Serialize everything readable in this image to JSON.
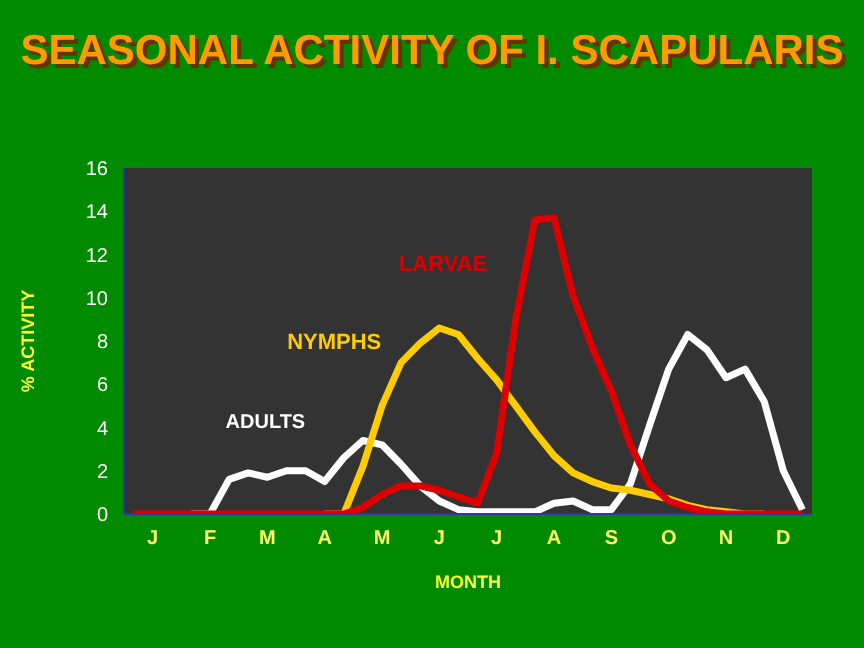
{
  "chart_data": {
    "type": "line",
    "title": "SEASONAL ACTIVITY OF I. SCAPULARIS",
    "xlabel": "MONTH",
    "ylabel": "% ACTIVITY",
    "categories": [
      null,
      "J",
      null,
      null,
      "F",
      null,
      null,
      "M",
      null,
      null,
      "A",
      null,
      null,
      "M",
      null,
      null,
      "J",
      null,
      null,
      "J",
      null,
      null,
      "A",
      null,
      null,
      "S",
      null,
      null,
      "O",
      null,
      null,
      "N",
      null,
      null,
      "D",
      null
    ],
    "ylim": [
      0,
      16
    ],
    "yticks": [
      0,
      2,
      4,
      6,
      8,
      10,
      12,
      14,
      16
    ],
    "grid": false,
    "legend": false,
    "marker": "none",
    "line_style": "solid",
    "series": [
      {
        "name": "ADULTS",
        "color": "#ffffff",
        "values": [
          null,
          null,
          null,
          0,
          0,
          1.6,
          1.9,
          1.7,
          2.0,
          2.0,
          1.5,
          2.6,
          3.4,
          3.2,
          2.3,
          1.3,
          0.6,
          0.2,
          0.1,
          0.1,
          0.1,
          0.1,
          0.5,
          0.6,
          0.2,
          0.2,
          1.4,
          4.1,
          6.7,
          8.3,
          7.6,
          6.3,
          6.7,
          5.2,
          2.0,
          0.2
        ]
      },
      {
        "name": "NYMPHS",
        "color": "#ffcc00",
        "values": [
          null,
          null,
          null,
          null,
          null,
          null,
          null,
          null,
          null,
          null,
          0,
          0,
          2.2,
          5.0,
          7.0,
          7.9,
          8.6,
          8.3,
          7.2,
          6.2,
          5.0,
          3.8,
          2.7,
          1.9,
          1.5,
          1.2,
          1.1,
          0.9,
          0.7,
          0.4,
          0.2,
          0.1,
          0,
          0,
          null,
          null
        ]
      },
      {
        "name": "LARVAE",
        "color": "#dd0000",
        "values": [
          0,
          0,
          0,
          0,
          0,
          0,
          0,
          0,
          0,
          0,
          0,
          0,
          0.3,
          0.9,
          1.3,
          1.3,
          1.1,
          0.8,
          0.5,
          2.8,
          9.0,
          13.6,
          13.7,
          10.1,
          7.7,
          5.7,
          3.2,
          1.4,
          0.6,
          0.3,
          0.1,
          0,
          0,
          0,
          0,
          0
        ]
      }
    ]
  }
}
